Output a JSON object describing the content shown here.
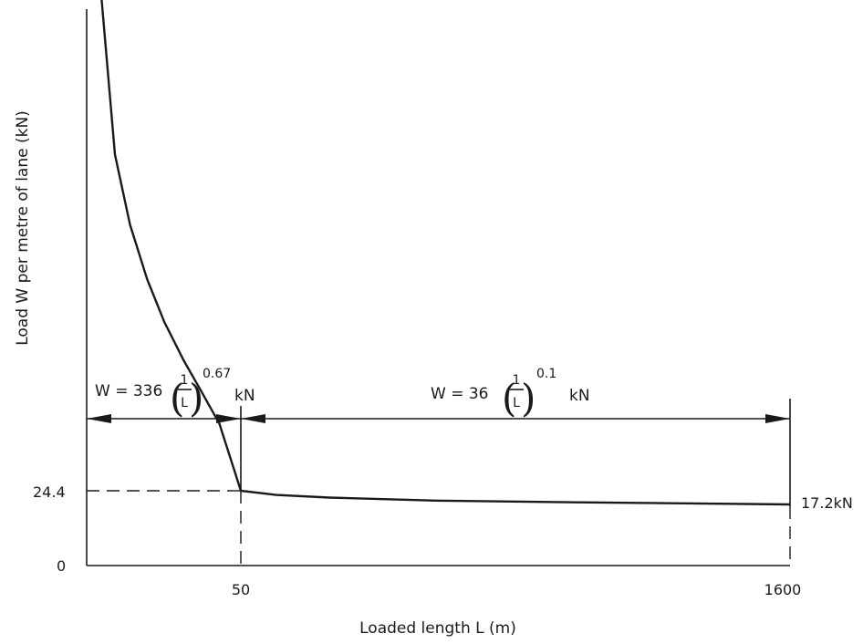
{
  "chart_data": {
    "type": "line",
    "title": "",
    "xlabel": "Loaded length L (m)",
    "ylabel": "Load W per metre of lane (kN)",
    "x_ticks": [
      "50",
      "1600"
    ],
    "y_ticks": [
      "0",
      "24.4"
    ],
    "grid": false,
    "series": [
      {
        "x": [
          1,
          3,
          5,
          8,
          12,
          18,
          25,
          35,
          50,
          150,
          300,
          600,
          1000,
          1600
        ],
        "y": [
          336,
          161.9,
          114.3,
          83.6,
          63.7,
          49.0,
          39.7,
          31.7,
          24.4,
          22.2,
          20.8,
          19.2,
          18.3,
          17.2
        ]
      }
    ],
    "annotations": {
      "formula_short": {
        "lhs": "W = 336",
        "numerator": "1",
        "denominator": "L",
        "exponent": "0.67",
        "unit": "kN"
      },
      "formula_long": {
        "lhs": "W = 36",
        "numerator": "1",
        "denominator": "L",
        "exponent": "0.1",
        "unit": "kN"
      },
      "end_value_label": "17.2kN",
      "breakpoint_value": "24.4",
      "breakpoint_length": "50"
    }
  }
}
